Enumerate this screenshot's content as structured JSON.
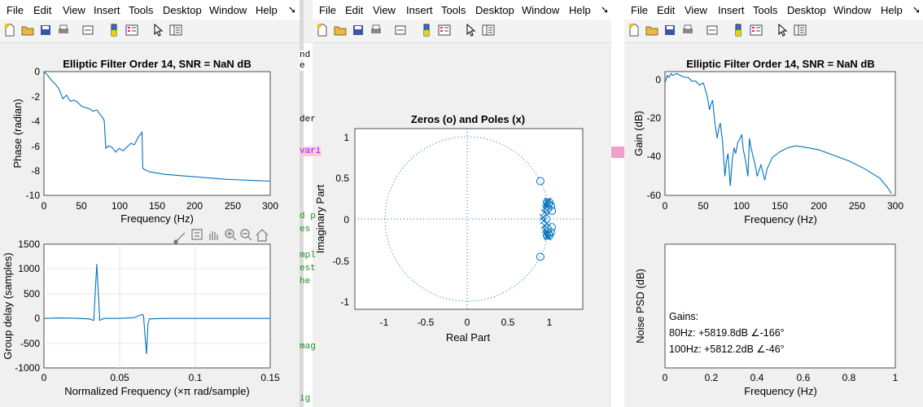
{
  "menu": [
    "File",
    "Edit",
    "View",
    "Insert",
    "Tools",
    "Desktop",
    "Window",
    "Help"
  ],
  "menu_overflow_icon": "arrow-icon",
  "toolbar_icons": [
    "new-figure-icon",
    "open-icon",
    "save-icon",
    "print-icon",
    "link-icon",
    "colorbar-icon",
    "legend-icon",
    "pointer-icon",
    "property-editor-icon"
  ],
  "axes_toolbar_icons": [
    "brush-icon",
    "data-tips-icon",
    "pan-icon",
    "zoom-in-icon",
    "zoom-out-icon",
    "home-icon"
  ],
  "background_fragments": {
    "top": [
      "nd",
      "e"
    ],
    "middle": [
      "der",
      "vari",
      "d p",
      "es",
      "mpl",
      "est",
      "he",
      "mag",
      "ig"
    ]
  },
  "windows": [
    {
      "plots": [
        {
          "title": "Elliptic Filter Order 14, SNR = NaN dB",
          "xlabel": "Frequency (Hz)",
          "ylabel": "Phase (radian)",
          "xticks": [
            "0",
            "50",
            "100",
            "150",
            "200",
            "250",
            "300"
          ],
          "yticks": [
            "0",
            "-2",
            "-4",
            "-6",
            "-8",
            "-10"
          ]
        },
        {
          "title": "",
          "xlabel": "Normalized Frequency (×π rad/sample)",
          "ylabel": "Group delay (samples)",
          "xticks": [
            "0",
            "0.05",
            "0.1",
            "0.15"
          ],
          "yticks": [
            "1500",
            "1000",
            "500",
            "0",
            "-500",
            "-1000"
          ]
        }
      ]
    },
    {
      "plots": [
        {
          "title": "Zeros (o) and Poles (x)",
          "xlabel": "Real Part",
          "ylabel": "Imaginary Part",
          "xticks": [
            "-1",
            "-0.5",
            "0",
            "0.5",
            "1"
          ],
          "yticks": [
            "1",
            "0.5",
            "0",
            "-0.5",
            "-1"
          ]
        }
      ]
    },
    {
      "plots": [
        {
          "title": "Elliptic Filter Order 14, SNR = NaN dB",
          "xlabel": "Frequency (Hz)",
          "ylabel": "Gain (dB)",
          "xticks": [
            "0",
            "50",
            "100",
            "150",
            "200",
            "250",
            "300"
          ],
          "yticks": [
            "0",
            "-20",
            "-40",
            "-60"
          ]
        },
        {
          "title": "",
          "xlabel": "Frequency (Hz)",
          "ylabel": "Noise PSD (dB)",
          "xticks": [
            "0",
            "0.2",
            "0.4",
            "0.6",
            "0.8",
            "1"
          ],
          "yticks": [],
          "annotation": [
            "Gains:",
            "80Hz: +5819.8dB ∠-166°",
            "100Hz: +5812.2dB ∠-46°"
          ]
        }
      ]
    }
  ],
  "chart_data": [
    {
      "type": "line",
      "title": "Elliptic Filter Order 14, SNR = NaN dB",
      "xlabel": "Frequency (Hz)",
      "ylabel": "Phase (radian)",
      "xlim": [
        0,
        300
      ],
      "ylim": [
        -10,
        0
      ],
      "grid": false,
      "series": [
        {
          "x": [
            0,
            5,
            10,
            15,
            20,
            25,
            30,
            35,
            40,
            45,
            50,
            55,
            60,
            65,
            70,
            75,
            79,
            80,
            82,
            85,
            90,
            95,
            100,
            105,
            110,
            115,
            120,
            125,
            130,
            131,
            133,
            140,
            160,
            180,
            200,
            220,
            240,
            260,
            280,
            300
          ],
          "y": [
            0,
            -0.3,
            -0.7,
            -1.0,
            -1.4,
            -2.2,
            -1.9,
            -2.4,
            -2.3,
            -2.5,
            -2.8,
            -2.9,
            -3.0,
            -3.2,
            -3.1,
            -3.5,
            -3.8,
            -4.0,
            -6.2,
            -6.0,
            -6.1,
            -6.5,
            -6.2,
            -6.4,
            -6.1,
            -5.8,
            -5.9,
            -5.3,
            -4.9,
            -7.8,
            -7.9,
            -8.1,
            -8.3,
            -8.4,
            -8.5,
            -8.6,
            -8.7,
            -8.75,
            -8.8,
            -8.85
          ]
        }
      ]
    },
    {
      "type": "line",
      "xlabel": "Normalized Frequency (×π rad/sample)",
      "ylabel": "Group delay (samples)",
      "xlim": [
        0,
        0.15
      ],
      "ylim": [
        -1000,
        1500
      ],
      "grid": true,
      "series": [
        {
          "x": [
            0,
            0.01,
            0.02,
            0.03,
            0.033,
            0.035,
            0.037,
            0.04,
            0.05,
            0.06,
            0.065,
            0.066,
            0.067,
            0.068,
            0.069,
            0.07,
            0.08,
            0.1,
            0.12,
            0.15
          ],
          "y": [
            0,
            10,
            5,
            -10,
            -40,
            1100,
            -40,
            0,
            0,
            20,
            80,
            60,
            -350,
            -720,
            -100,
            -10,
            0,
            0,
            0,
            0
          ]
        }
      ]
    },
    {
      "type": "scatter",
      "title": "Zeros (o) and Poles (x)",
      "xlabel": "Real Part",
      "ylabel": "Imaginary Part",
      "xlim": [
        -1.4,
        1.4
      ],
      "ylim": [
        -1.1,
        1.1
      ],
      "grid": false,
      "series": [
        {
          "name": "Zeros",
          "marker": "o",
          "points": [
            [
              0.89,
              0.46
            ],
            [
              0.89,
              -0.46
            ],
            [
              0.99,
              0.18
            ],
            [
              1.02,
              0.16
            ],
            [
              0.98,
              0.12
            ],
            [
              1.03,
              0.1
            ],
            [
              0.99,
              -0.18
            ],
            [
              1.02,
              -0.16
            ],
            [
              0.98,
              -0.12
            ],
            [
              1.03,
              -0.1
            ],
            [
              0.97,
              0.2
            ],
            [
              0.97,
              -0.2
            ],
            [
              1.0,
              0.2
            ],
            [
              1.0,
              -0.2
            ]
          ]
        },
        {
          "name": "Poles",
          "marker": "x",
          "points": [
            [
              0.92,
              0.02
            ],
            [
              0.93,
              -0.02
            ],
            [
              0.94,
              0.08
            ],
            [
              0.94,
              -0.08
            ],
            [
              0.95,
              0.13
            ],
            [
              0.95,
              -0.13
            ],
            [
              0.96,
              0.17
            ],
            [
              0.96,
              -0.17
            ],
            [
              0.97,
              0.2
            ],
            [
              0.97,
              -0.2
            ],
            [
              0.98,
              0.22
            ],
            [
              0.98,
              -0.22
            ],
            [
              0.97,
              0.05
            ],
            [
              0.97,
              -0.05
            ]
          ]
        }
      ]
    },
    {
      "type": "line",
      "title": "Elliptic Filter Order 14, SNR = NaN dB",
      "xlabel": "Frequency (Hz)",
      "ylabel": "Gain (dB)",
      "xlim": [
        0,
        300
      ],
      "ylim": [
        -60,
        5
      ],
      "grid": false,
      "series": [
        {
          "x": [
            0,
            3,
            5,
            8,
            10,
            15,
            20,
            25,
            30,
            35,
            40,
            45,
            50,
            55,
            58,
            60,
            62,
            65,
            68,
            70,
            72,
            75,
            78,
            80,
            82,
            85,
            88,
            90,
            92,
            95,
            98,
            100,
            102,
            105,
            108,
            110,
            112,
            115,
            118,
            120,
            125,
            130,
            133,
            140,
            150,
            160,
            170,
            180,
            200,
            220,
            240,
            260,
            280,
            290,
            295
          ],
          "y": [
            -1,
            3,
            2,
            4,
            3,
            4,
            3,
            2,
            2,
            0,
            0,
            -2,
            -1,
            -8,
            -15,
            -12,
            -10,
            -22,
            -30,
            -25,
            -22,
            -32,
            -50,
            -42,
            -38,
            -55,
            -40,
            -35,
            -38,
            -32,
            -30,
            -28,
            -36,
            -42,
            -50,
            -30,
            -35,
            -40,
            -45,
            -50,
            -44,
            -52,
            -46,
            -40,
            -37,
            -35,
            -34,
            -34.5,
            -36,
            -39,
            -42,
            -46,
            -51,
            -56,
            -59
          ]
        }
      ]
    },
    {
      "type": "line",
      "xlabel": "Frequency (Hz)",
      "ylabel": "Noise PSD (dB)",
      "xlim": [
        0,
        1
      ],
      "grid": false,
      "series": []
    }
  ]
}
